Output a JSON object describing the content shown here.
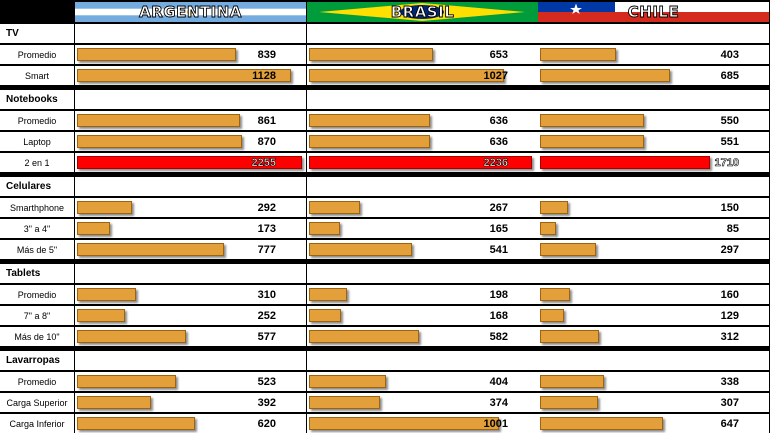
{
  "chart_data": {
    "type": "bar",
    "orientation": "horizontal",
    "countries": [
      {
        "name": "ARGENTINA",
        "flag": "argentina-flag"
      },
      {
        "name": "BRASIL",
        "flag": "brazil-flag"
      },
      {
        "name": "CHILE",
        "flag": "chile-flag"
      }
    ],
    "sections": [
      {
        "title": "TV",
        "rows": [
          {
            "label": "Promedio",
            "values": [
              839,
              653,
              403
            ]
          },
          {
            "label": "Smart",
            "values": [
              1128,
              1027,
              685
            ]
          }
        ]
      },
      {
        "title": "Notebooks",
        "rows": [
          {
            "label": "Promedio",
            "values": [
              861,
              636,
              550
            ]
          },
          {
            "label": "Laptop",
            "values": [
              870,
              636,
              551
            ]
          },
          {
            "label": "2 en 1",
            "values": [
              2255,
              2236,
              1710
            ],
            "highlight": true
          }
        ]
      },
      {
        "title": "Celulares",
        "rows": [
          {
            "label": "Smarthphone",
            "values": [
              292,
              267,
              150
            ]
          },
          {
            "label": "3\" a 4\"",
            "values": [
              173,
              165,
              85
            ]
          },
          {
            "label": "Más de 5\"",
            "values": [
              777,
              541,
              297
            ]
          }
        ]
      },
      {
        "title": "Tablets",
        "rows": [
          {
            "label": "Promedio",
            "values": [
              310,
              198,
              160
            ]
          },
          {
            "label": "7\" a 8\"",
            "values": [
              252,
              168,
              129
            ]
          },
          {
            "label": "Más de 10\"",
            "values": [
              577,
              582,
              312
            ]
          }
        ]
      },
      {
        "title": "Lavarropas",
        "rows": [
          {
            "label": "Promedio",
            "values": [
              523,
              404,
              338
            ]
          },
          {
            "label": "Carga Superior",
            "values": [
              392,
              374,
              307
            ]
          },
          {
            "label": "Carga Inferior",
            "values": [
              620,
              1001,
              647
            ]
          }
        ]
      }
    ],
    "colors": {
      "bar": "#e3a03a",
      "highlight": "#ff0000",
      "background": "#000000",
      "cell": "#ffffff"
    }
  }
}
